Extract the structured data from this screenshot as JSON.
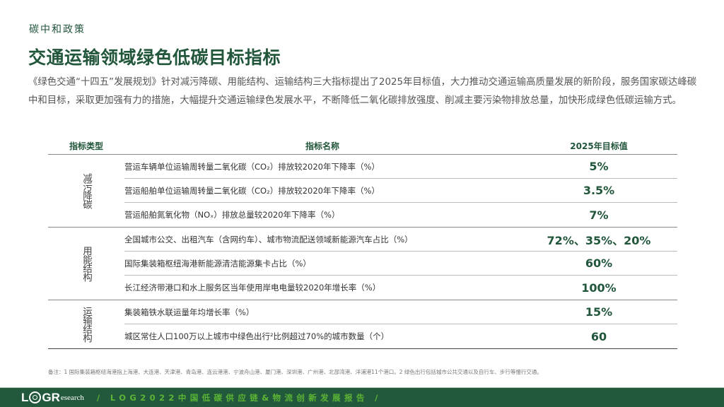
{
  "header": {
    "section": "碳中和政策",
    "title": "交通运输领域绿色低碳目标指标"
  },
  "intro": "《绿色交通“十四五”发展规划》针对减污降碳、用能结构、运输结构三大指标提出了2025年目标值，大力推动交通运输高质量发展的新阶段，服务国家碳达峰碳中和目标，采取更加强有力的措施，大幅提升交通运输绿色发展水平，不断降低二氧化碳排放强度、削减主要污染物排放总量，加快形成绿色低碳运输方式。",
  "table": {
    "headers": {
      "type": "指标类型",
      "name": "指标名称",
      "value": "2025年目标值"
    },
    "groups": [
      {
        "label": "减污降碳",
        "rows": [
          {
            "name": "营运车辆单位运输周转量二氧化碳（CO₂）排放较2020年下降率（%）",
            "value": "5%"
          },
          {
            "name": "营运船舶单位运输周转量二氧化碳（CO₂）排放较2020年下降率（%）",
            "value": "3.5%"
          },
          {
            "name": "营运船舶氮氧化物（NOₓ）排放总量较2020年下降率（%）",
            "value": "7%"
          }
        ]
      },
      {
        "label": "用能结构",
        "rows": [
          {
            "name": "全国城市公交、出租汽车（含网约车）、城市物流配送领域新能源汽车占比（%）",
            "value": "72%、35%、20%"
          },
          {
            "name": "国际集装箱枢纽海港新能源清洁能源集卡占比（%）",
            "value": "60%"
          },
          {
            "name": "长江经济带港口和水上服务区当年使用岸电电量较2020年增长率（%）",
            "value": "100%"
          }
        ]
      },
      {
        "label": "运输结构",
        "rows": [
          {
            "name": "集装箱铁水联运量年均增长率（%）",
            "value": "15%"
          },
          {
            "name": "城区常住人口100万以上城市中绿色出行²比例超过70%的城市数量（个）",
            "value": "60"
          }
        ]
      }
    ]
  },
  "footnote": "备注：1 国际集装箱枢纽海港指上海港、大连港、天津港、青岛港、连云港港、宁波舟山港、厦门港、深圳港、广州港、北部湾港、洋浦港11个港口。2 绿色出行包括城市公共交通以及自行车、步行等慢行交通。",
  "footer": {
    "logo_left": "L",
    "logo_right": "GR",
    "logo_suffix": "esearch",
    "report": "/  LOG2022中国低碳供应链&物流创新发展报告  /"
  },
  "colors": {
    "brand_green": "#22563b",
    "footer_bg": "#22583c",
    "footer_accent": "#5cb534"
  }
}
